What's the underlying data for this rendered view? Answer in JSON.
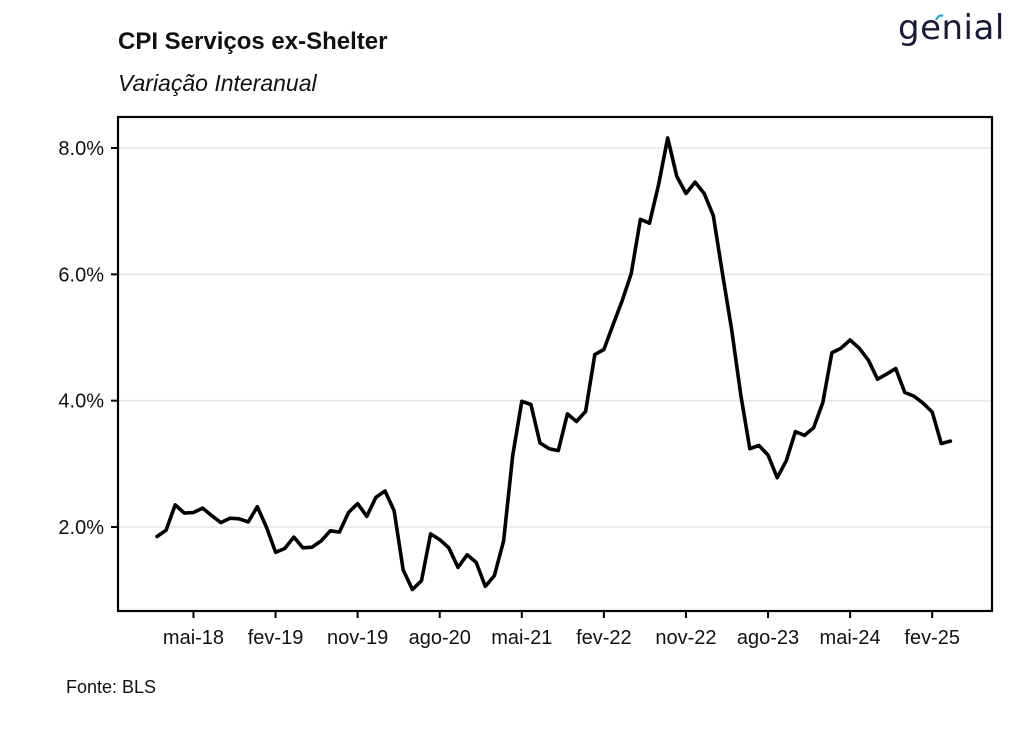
{
  "header": {
    "title": "CPI Serviços ex-Shelter",
    "subtitle": "Variação Interanual",
    "logo_text": "genial",
    "logo_accent_color": "#29a8e0"
  },
  "footer": {
    "source": "Fonte: BLS"
  },
  "chart_data": {
    "type": "line",
    "title": "CPI Serviços ex-Shelter",
    "subtitle": "Variação Interanual",
    "xlabel": "",
    "ylabel": "",
    "ylim": [
      0.9,
      8.5
    ],
    "yticks": [
      2.0,
      4.0,
      6.0,
      8.0
    ],
    "ytick_labels": [
      "2.0%",
      "4.0%",
      "6.0%",
      "8.0%"
    ],
    "xtick_labels": [
      "mai-18",
      "fev-19",
      "nov-19",
      "ago-20",
      "mai-21",
      "fev-22",
      "nov-22",
      "ago-23",
      "mai-24",
      "fev-25"
    ],
    "xtick_positions": [
      4,
      13,
      22,
      31,
      40,
      49,
      58,
      67,
      76,
      85
    ],
    "x_start_label": "jan-18",
    "grid": "horizontal",
    "line_color": "#000000",
    "series": [
      {
        "values": [
          1.85,
          1.95,
          2.35,
          2.22,
          2.23,
          2.3,
          2.18,
          2.07,
          2.14,
          2.13,
          2.08,
          2.32,
          2.0,
          1.6,
          1.66,
          1.84,
          1.67,
          1.68,
          1.78,
          1.94,
          1.92,
          2.23,
          2.37,
          2.17,
          2.47,
          2.57,
          2.26,
          1.32,
          1.01,
          1.15,
          1.89,
          1.8,
          1.67,
          1.36,
          1.56,
          1.44,
          1.06,
          1.23,
          1.78,
          3.13,
          3.99,
          3.94,
          3.33,
          3.24,
          3.21,
          3.79,
          3.67,
          3.83,
          4.73,
          4.81,
          5.2,
          5.58,
          6.01,
          6.87,
          6.81,
          7.42,
          8.16,
          7.55,
          7.28,
          7.46,
          7.28,
          6.93,
          6.02,
          5.13,
          4.1,
          3.24,
          3.29,
          3.14,
          2.78,
          3.05,
          3.51,
          3.45,
          3.57,
          3.97,
          4.76,
          4.83,
          4.96,
          4.83,
          4.64,
          4.34,
          4.42,
          4.51,
          4.13,
          4.07,
          3.96,
          3.82,
          3.32,
          3.36
        ]
      }
    ]
  }
}
